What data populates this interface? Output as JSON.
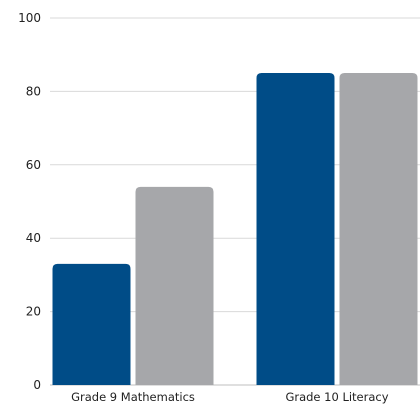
{
  "chart_data": {
    "type": "bar",
    "categories": [
      "Grade 9 Mathematics",
      "Grade 10 Literacy"
    ],
    "series": [
      {
        "values": [
          33,
          85
        ],
        "color": "#004c87"
      },
      {
        "values": [
          54,
          85
        ],
        "color": "#a6a7aa"
      }
    ],
    "ylim": [
      0,
      100
    ],
    "yticks": [
      0,
      20,
      40,
      60,
      80,
      100
    ],
    "grid": true,
    "legend": "none"
  }
}
